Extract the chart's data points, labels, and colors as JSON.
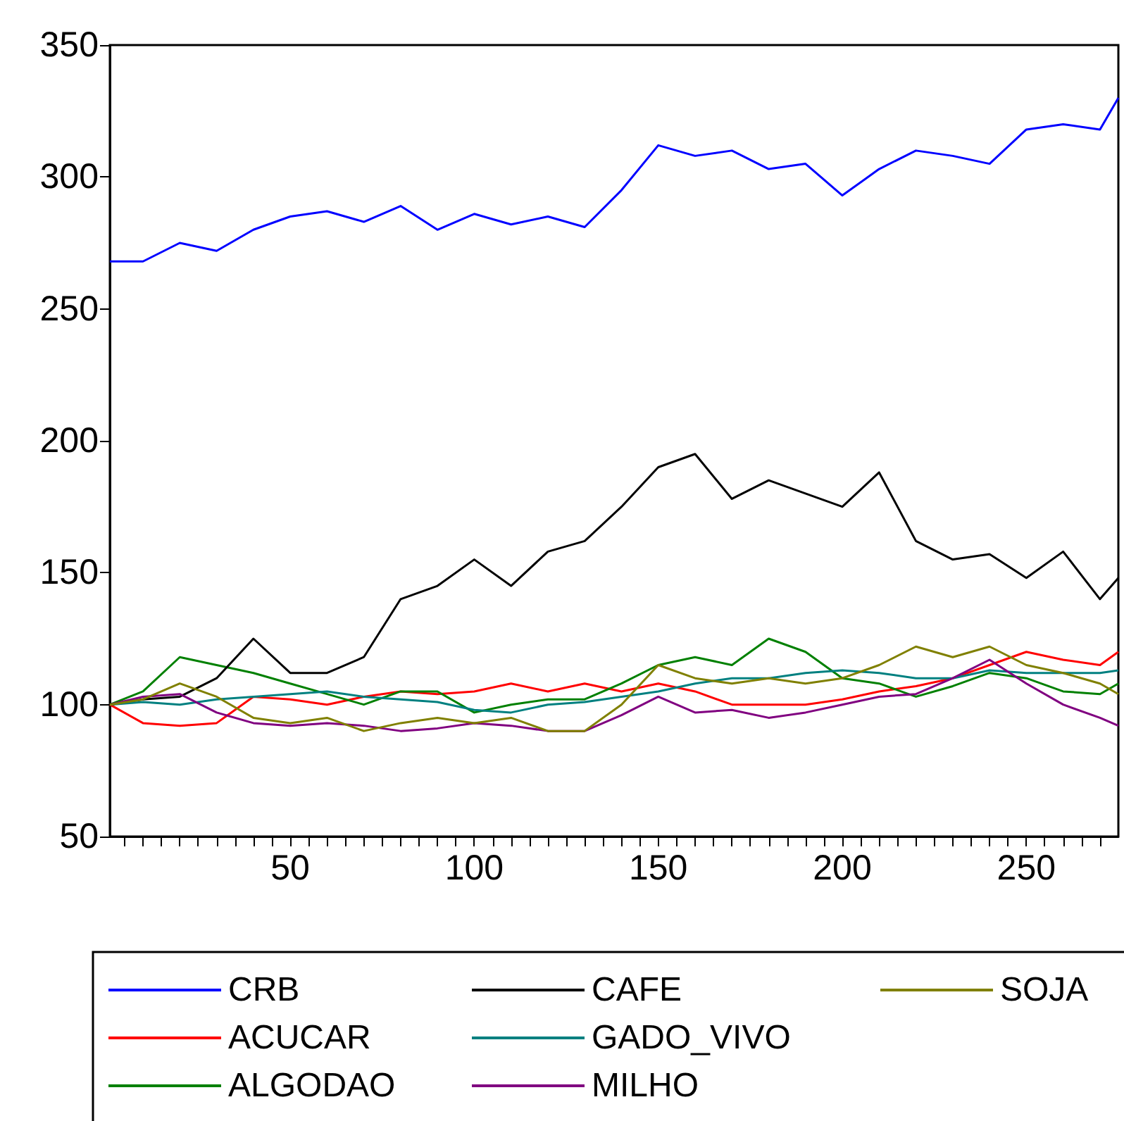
{
  "chart_data": {
    "type": "line",
    "x": [
      1,
      10,
      20,
      30,
      40,
      50,
      60,
      70,
      80,
      90,
      100,
      110,
      120,
      130,
      140,
      150,
      160,
      170,
      180,
      190,
      200,
      210,
      220,
      230,
      240,
      250,
      260,
      270,
      275
    ],
    "series": [
      {
        "name": "CRB",
        "color": "#0000ff",
        "values": [
          268,
          268,
          275,
          272,
          280,
          285,
          287,
          283,
          289,
          280,
          286,
          282,
          285,
          281,
          295,
          312,
          308,
          310,
          303,
          305,
          293,
          303,
          310,
          308,
          305,
          318,
          320,
          318,
          330
        ]
      },
      {
        "name": "ACUCAR",
        "color": "#ff0000",
        "values": [
          100,
          93,
          92,
          93,
          103,
          102,
          100,
          103,
          105,
          104,
          105,
          108,
          105,
          108,
          105,
          108,
          105,
          100,
          100,
          100,
          102,
          105,
          107,
          110,
          115,
          120,
          117,
          115,
          120
        ]
      },
      {
        "name": "ALGODAO",
        "color": "#008000",
        "values": [
          100,
          105,
          118,
          115,
          112,
          108,
          104,
          100,
          105,
          105,
          97,
          100,
          102,
          102,
          108,
          115,
          118,
          115,
          125,
          120,
          110,
          108,
          103,
          107,
          112,
          110,
          105,
          104,
          108
        ]
      },
      {
        "name": "CAFE",
        "color": "#000000",
        "values": [
          100,
          102,
          103,
          110,
          125,
          112,
          112,
          118,
          140,
          145,
          155,
          145,
          158,
          162,
          175,
          190,
          195,
          178,
          185,
          180,
          175,
          188,
          162,
          155,
          157,
          148,
          158,
          140,
          148
        ]
      },
      {
        "name": "GADO_VIVO",
        "color": "#008080",
        "values": [
          100,
          101,
          100,
          102,
          103,
          104,
          105,
          103,
          102,
          101,
          98,
          97,
          100,
          101,
          103,
          105,
          108,
          110,
          110,
          112,
          113,
          112,
          110,
          110,
          113,
          112,
          112,
          112,
          113
        ]
      },
      {
        "name": "MILHO",
        "color": "#800080",
        "values": [
          100,
          103,
          104,
          97,
          93,
          92,
          93,
          92,
          90,
          91,
          93,
          92,
          90,
          90,
          96,
          103,
          97,
          98,
          95,
          97,
          100,
          103,
          104,
          110,
          117,
          108,
          100,
          95,
          92
        ]
      },
      {
        "name": "SOJA",
        "color": "#808000",
        "values": [
          100,
          102,
          108,
          103,
          95,
          93,
          95,
          90,
          93,
          95,
          93,
          95,
          90,
          90,
          100,
          115,
          110,
          108,
          110,
          108,
          110,
          115,
          122,
          118,
          122,
          115,
          112,
          108,
          104
        ]
      }
    ],
    "xlim": [
      1,
      275
    ],
    "xticks": [
      {
        "value": 5,
        "label": null
      },
      {
        "value": 10,
        "label": null
      },
      {
        "value": 15,
        "label": null
      },
      {
        "value": 20,
        "label": null
      },
      {
        "value": 25,
        "label": null
      },
      {
        "value": 30,
        "label": null
      },
      {
        "value": 35,
        "label": null
      },
      {
        "value": 40,
        "label": null
      },
      {
        "value": 45,
        "label": null
      },
      50,
      {
        "value": 55,
        "label": null
      },
      {
        "value": 60,
        "label": null
      },
      {
        "value": 65,
        "label": null
      },
      {
        "value": 70,
        "label": null
      },
      {
        "value": 75,
        "label": null
      },
      {
        "value": 80,
        "label": null
      },
      {
        "value": 85,
        "label": null
      },
      {
        "value": 90,
        "label": null
      },
      {
        "value": 95,
        "label": null
      },
      100,
      {
        "value": 105,
        "label": null
      },
      {
        "value": 110,
        "label": null
      },
      {
        "value": 115,
        "label": null
      },
      {
        "value": 120,
        "label": null
      },
      {
        "value": 125,
        "label": null
      },
      {
        "value": 130,
        "label": null
      },
      {
        "value": 135,
        "label": null
      },
      {
        "value": 140,
        "label": null
      },
      {
        "value": 145,
        "label": null
      },
      150,
      {
        "value": 155,
        "label": null
      },
      {
        "value": 160,
        "label": null
      },
      {
        "value": 165,
        "label": null
      },
      {
        "value": 170,
        "label": null
      },
      {
        "value": 175,
        "label": null
      },
      {
        "value": 180,
        "label": null
      },
      {
        "value": 185,
        "label": null
      },
      {
        "value": 190,
        "label": null
      },
      {
        "value": 195,
        "label": null
      },
      200,
      {
        "value": 205,
        "label": null
      },
      {
        "value": 210,
        "label": null
      },
      {
        "value": 215,
        "label": null
      },
      {
        "value": 220,
        "label": null
      },
      {
        "value": 225,
        "label": null
      },
      {
        "value": 230,
        "label": null
      },
      {
        "value": 235,
        "label": null
      },
      {
        "value": 240,
        "label": null
      },
      {
        "value": 245,
        "label": null
      },
      250,
      {
        "value": 255,
        "label": null
      },
      {
        "value": 260,
        "label": null
      },
      {
        "value": 265,
        "label": null
      },
      {
        "value": 270,
        "label": null
      }
    ],
    "ylim": [
      50,
      350
    ],
    "yticks": [
      50,
      100,
      150,
      200,
      250,
      300,
      350
    ],
    "grid": false,
    "legend": "bottom",
    "marker": "none",
    "line_style": "solid"
  }
}
